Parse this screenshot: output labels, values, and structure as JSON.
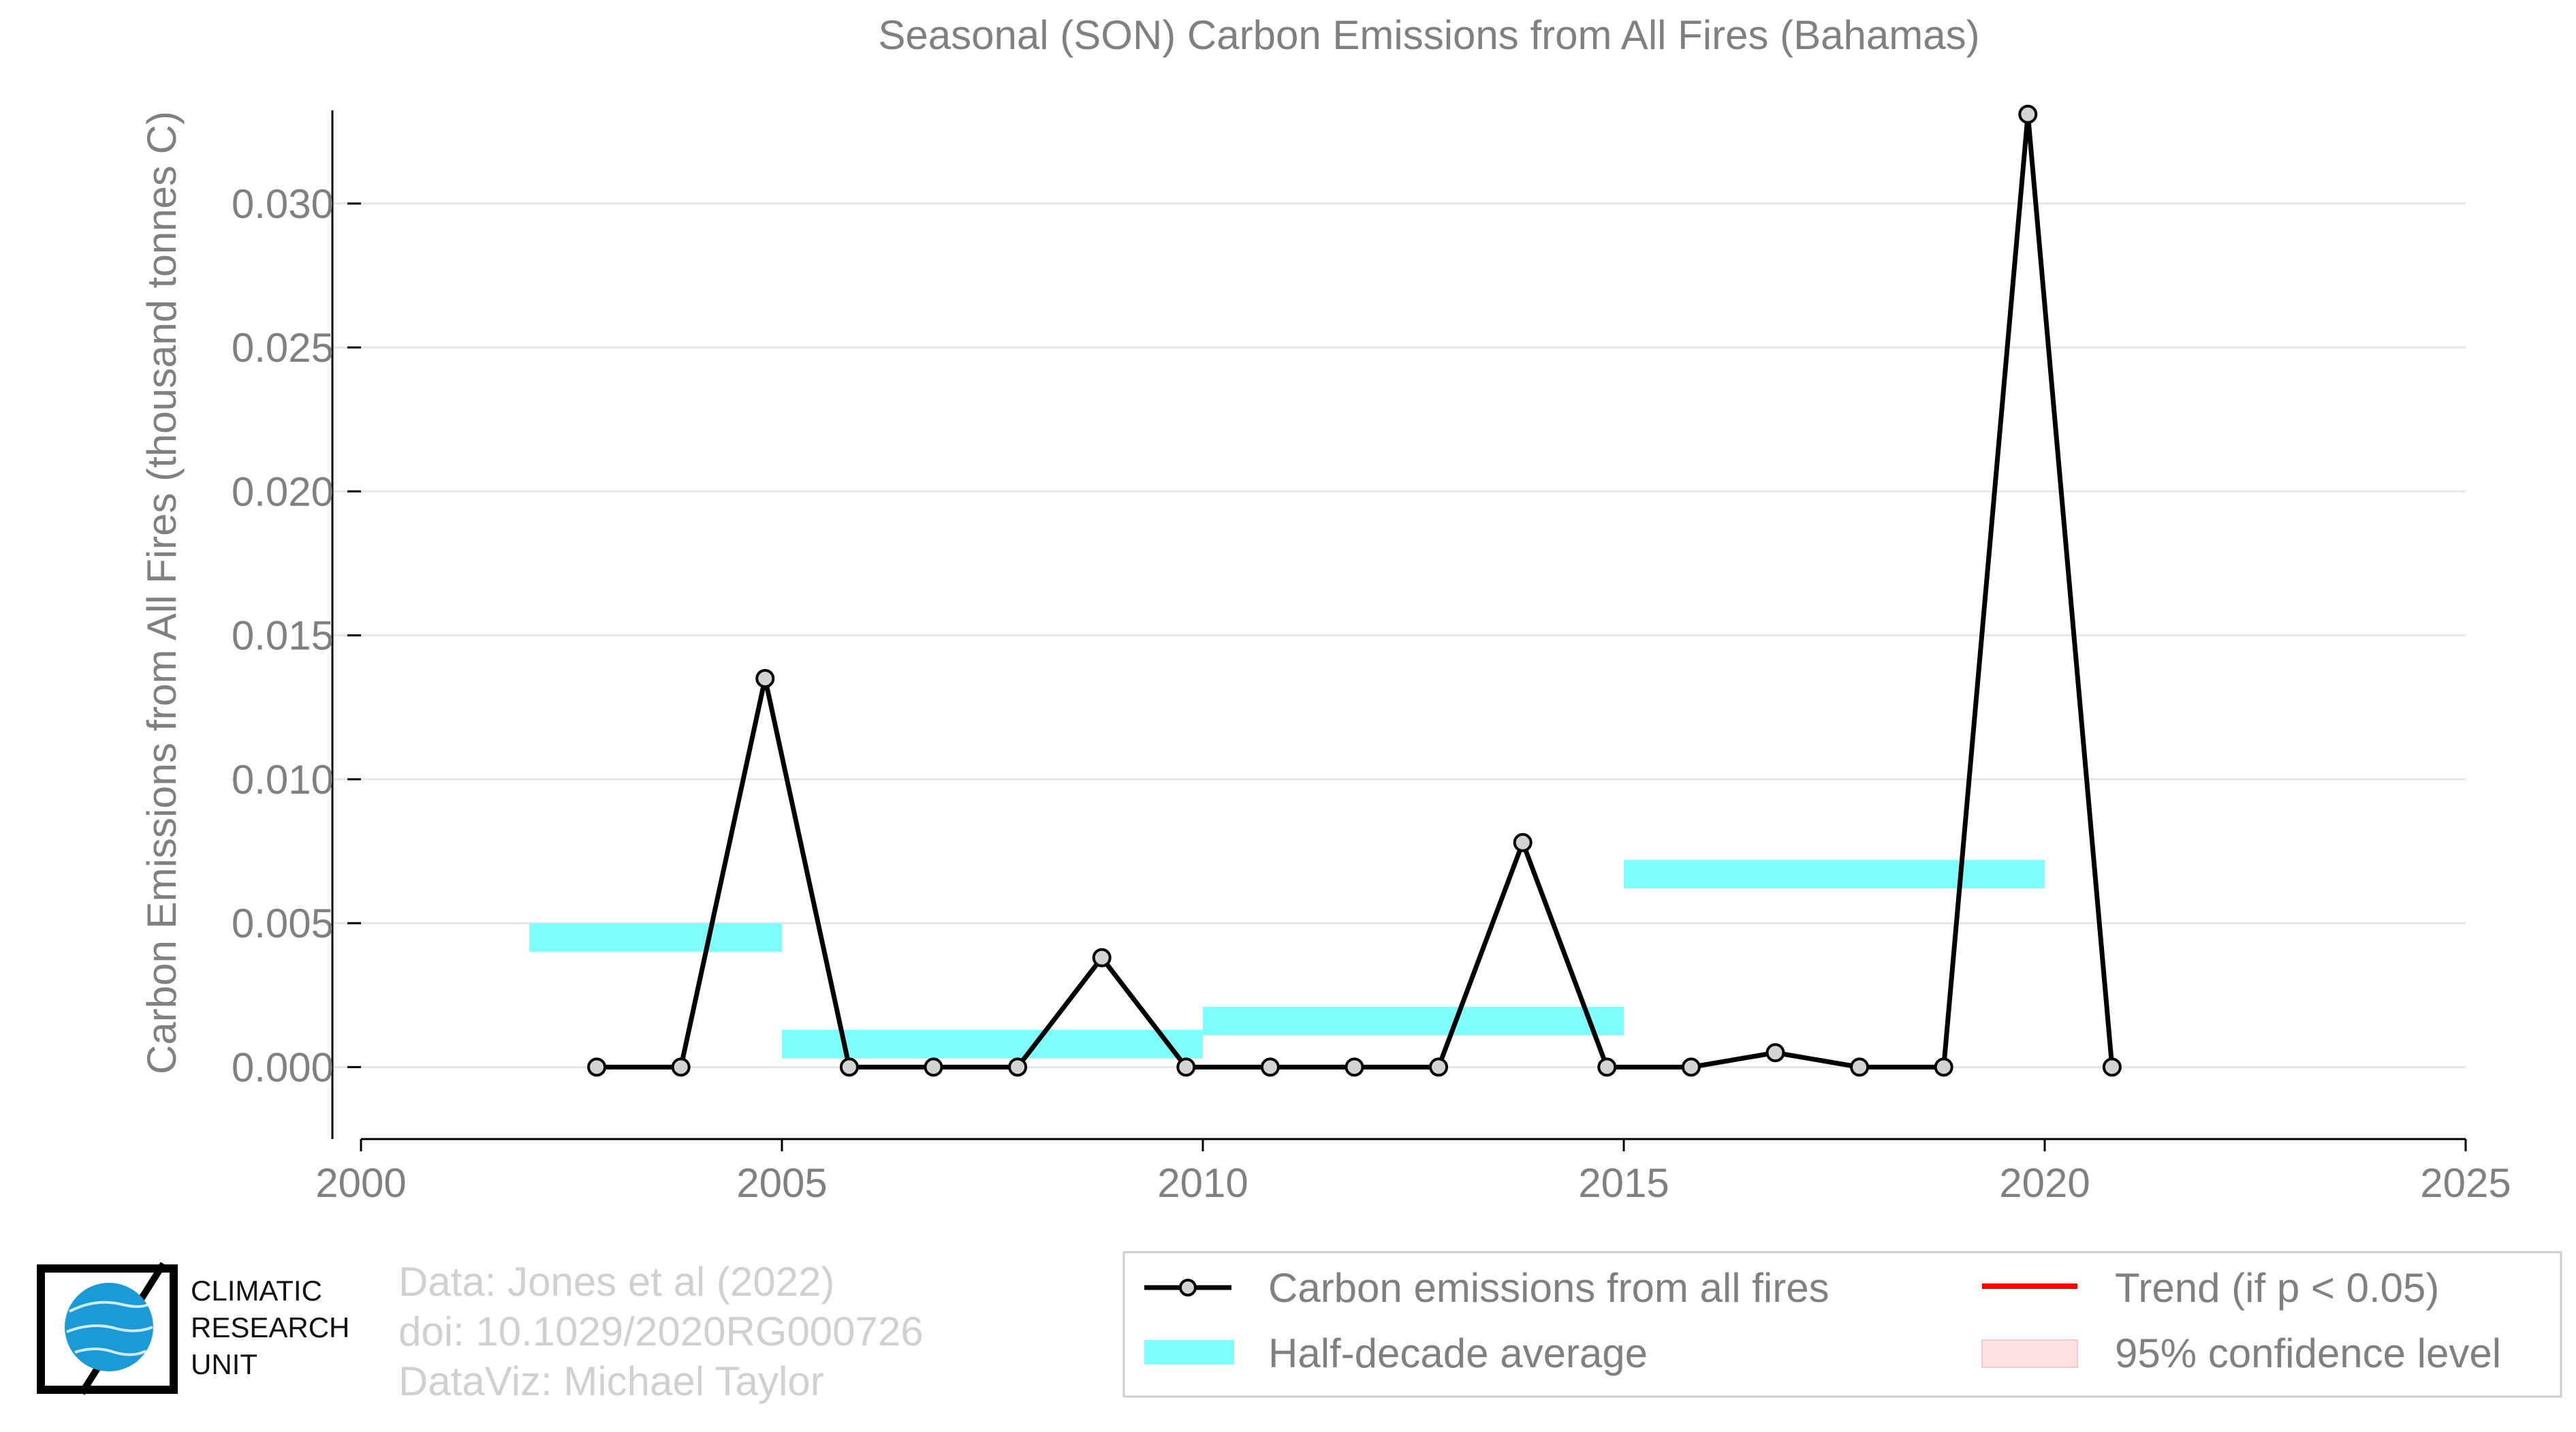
{
  "chart_data": {
    "type": "line",
    "title": "Seasonal (SON) Carbon Emissions from All Fires (Bahamas)",
    "xlabel": "",
    "ylabel": "Carbon Emissions from All Fires (thousand tonnes C)",
    "xlim": [
      2000,
      2025
    ],
    "ylim": [
      -0.0025,
      0.033
    ],
    "x_ticks": [
      "2000",
      "2005",
      "2010",
      "2015",
      "2020",
      "2025"
    ],
    "y_ticks": [
      "0.000",
      "0.005",
      "0.010",
      "0.015",
      "0.020",
      "0.025",
      "0.030"
    ],
    "grid": "horizontal",
    "series": [
      {
        "name": "Carbon emissions from all fires",
        "color": "#000000",
        "x": [
          2002.8,
          2003.8,
          2004.8,
          2005.8,
          2006.8,
          2007.8,
          2008.8,
          2009.8,
          2010.8,
          2011.8,
          2012.8,
          2013.8,
          2014.8,
          2015.8,
          2016.8,
          2017.8,
          2018.8,
          2019.8,
          2020.8
        ],
        "y": [
          0.0,
          0.0,
          0.0135,
          0.0,
          0.0,
          0.0,
          0.0038,
          0.0,
          0.0,
          0.0,
          0.0,
          0.0078,
          0.0,
          0.0,
          0.0005,
          0.0,
          0.0,
          0.0331,
          0.0
        ]
      }
    ],
    "half_decade_average": {
      "name": "Half-decade average",
      "color": "#7ffcfc",
      "segments": [
        {
          "x0": 2002,
          "x1": 2005,
          "y": 0.0045
        },
        {
          "x0": 2005,
          "x1": 2010,
          "y": 0.0008
        },
        {
          "x0": 2010,
          "x1": 2015,
          "y": 0.0016
        },
        {
          "x0": 2015,
          "x1": 2020,
          "y": 0.0067
        }
      ]
    },
    "legend": {
      "placement": "bottom-right",
      "items": [
        {
          "label": "Carbon emissions from all fires",
          "symbol": "line-marker",
          "color": "#000000"
        },
        {
          "label": "Trend (if p < 0.05)",
          "symbol": "line",
          "color": "#ff0000"
        },
        {
          "label": "Half-decade average",
          "symbol": "patch",
          "color": "#7ffcfc"
        },
        {
          "label": "95% confidence level",
          "symbol": "patch",
          "color": "#fde0e0"
        }
      ]
    }
  },
  "credits": {
    "line1": "Data: Jones et al (2022)",
    "line2": "doi: 10.1029/2020RG000726",
    "line3": "DataViz: Michael Taylor"
  },
  "logo": {
    "line1": "CLIMATIC",
    "line2": "RESEARCH",
    "line3": "UNIT"
  }
}
